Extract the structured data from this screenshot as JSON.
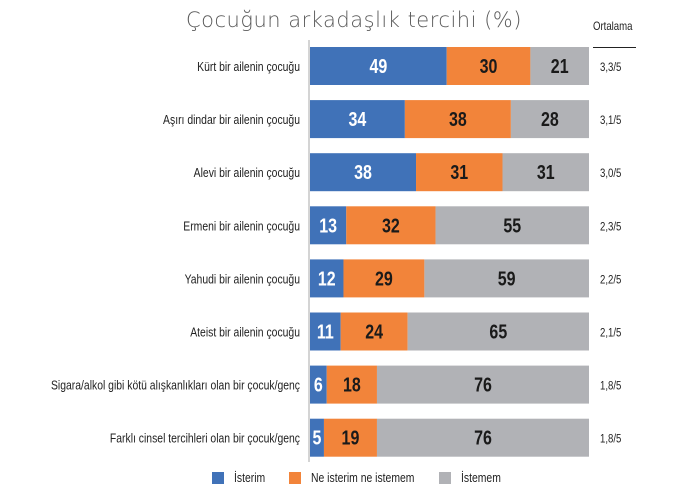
{
  "chart_data": {
    "type": "bar",
    "orientation": "horizontal",
    "stacked": true,
    "title": "Çocuğun arkadaşlık tercihi (%)",
    "categories": [
      "Kürt bir ailenin çocuğu",
      "Aşırı dindar bir ailenin çocuğu",
      "Alevi bir ailenin çocuğu",
      "Ermeni bir ailenin çocuğu",
      "Yahudi bir ailenin çocuğu",
      "Ateist bir ailenin çocuğu",
      "Sigara/alkol gibi kötü alışkanlıkları olan bir çocuk/genç",
      "Farklı cinsel tercihleri olan bir çocuk/genç"
    ],
    "series": [
      {
        "name": "İsterim",
        "color": "#4072b8",
        "values": [
          49,
          34,
          38,
          13,
          12,
          11,
          6,
          5
        ]
      },
      {
        "name": "Ne isterim ne istemem",
        "color": "#f2843a",
        "values": [
          30,
          38,
          31,
          32,
          29,
          24,
          18,
          19
        ]
      },
      {
        "name": "İstemem",
        "color": "#b1b2b6",
        "values": [
          21,
          28,
          31,
          55,
          59,
          65,
          76,
          76
        ]
      }
    ],
    "xlim": [
      0,
      100
    ],
    "legend_position": "bottom",
    "average_header": "Ortalama",
    "averages": [
      "3,3/5",
      "3,1/5",
      "3,0/5",
      "2,3/5",
      "2,2/5",
      "2,1/5",
      "1,8/5",
      "1,8/5"
    ]
  }
}
